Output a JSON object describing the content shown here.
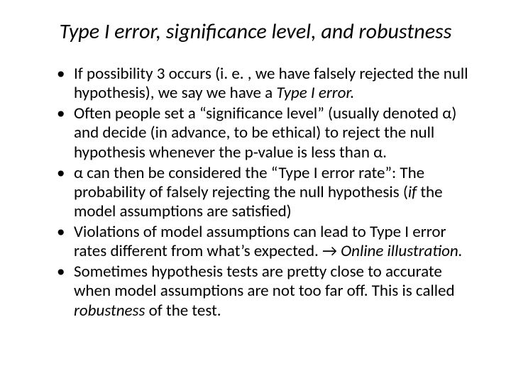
{
  "title": "Type I error, significance level, and robustness",
  "bullets": [
    {
      "pre": "If possibility 3 occurs (i. e. , we have falsely rejected the null hypothesis), we say we have a ",
      "em": "Type I error.",
      "post": ""
    },
    {
      "pre": "Often people set a “significance level” (usually denoted α) and decide (in advance, to be ethical) to reject the null hypothesis whenever the p-value is less than α.",
      "em": "",
      "post": ""
    },
    {
      "pre": "α can then be considered the “Type I error rate”: The probability of falsely rejecting the null hypothesis (",
      "em": "if ",
      "post": "the model assumptions are satisfied)"
    },
    {
      "pre": "Violations of model assumptions can lead to Type I error rates different from what’s expected. → ",
      "em": "Online illustration.",
      "post": ""
    },
    {
      "pre": "Sometimes hypothesis tests are pretty close to accurate when model assumptions are not too far off. This is called ",
      "em": "robustness ",
      "post": "of the test."
    }
  ]
}
